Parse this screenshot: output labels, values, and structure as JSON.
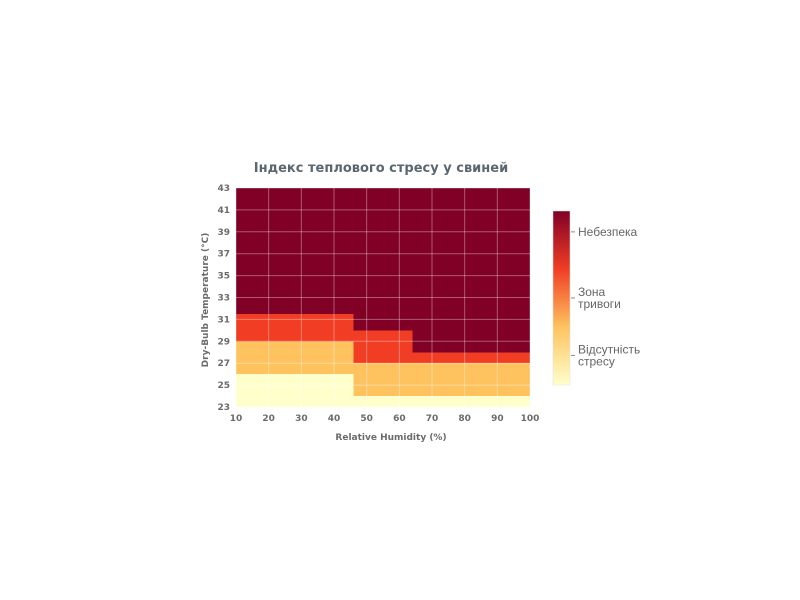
{
  "chart_data": {
    "type": "heatmap",
    "title": "Індекс теплового стресу у свиней",
    "xlabel": "Relative Humidity (%)",
    "ylabel": "Dry-Bulb Temperature (°C)",
    "xlim": [
      10,
      100
    ],
    "ylim": [
      23,
      43
    ],
    "x_ticks": [
      "10",
      "20",
      "30",
      "40",
      "50",
      "60",
      "70",
      "80",
      "90",
      "100"
    ],
    "y_ticks": [
      "23",
      "25",
      "27",
      "29",
      "31",
      "33",
      "35",
      "37",
      "39",
      "41",
      "43"
    ],
    "grid": true,
    "colors": {
      "no_stress": "#ffffcc",
      "mild": "#fec35f",
      "alarm": "#f13d24",
      "danger": "#800026"
    },
    "zones": [
      {
        "level": "no_stress",
        "x": [
          10,
          46
        ],
        "y": [
          23,
          26
        ]
      },
      {
        "level": "no_stress",
        "x": [
          46,
          100
        ],
        "y": [
          23,
          24
        ]
      },
      {
        "level": "mild",
        "x": [
          10,
          46
        ],
        "y": [
          26,
          29
        ]
      },
      {
        "level": "mild",
        "x": [
          46,
          100
        ],
        "y": [
          24,
          27
        ]
      },
      {
        "level": "alarm",
        "x": [
          10,
          46
        ],
        "y": [
          29,
          31.5
        ]
      },
      {
        "level": "alarm",
        "x": [
          46,
          64
        ],
        "y": [
          27,
          30
        ]
      },
      {
        "level": "alarm",
        "x": [
          64,
          100
        ],
        "y": [
          27,
          28
        ]
      },
      {
        "level": "danger",
        "x": [
          10,
          46
        ],
        "y": [
          31.5,
          43
        ]
      },
      {
        "level": "danger",
        "x": [
          46,
          64
        ],
        "y": [
          30,
          43
        ]
      },
      {
        "level": "danger",
        "x": [
          64,
          100
        ],
        "y": [
          28,
          43
        ]
      }
    ],
    "colorbar": {
      "gradient": [
        "#ffffcc",
        "#fec35f",
        "#f13d24",
        "#800026"
      ],
      "labels": [
        {
          "lines": [
            "Небезпека"
          ],
          "position": 0.88
        },
        {
          "lines": [
            "Зона",
            "тривоги"
          ],
          "position": 0.5
        },
        {
          "lines": [
            "Відсутність",
            "стресу"
          ],
          "position": 0.17
        }
      ]
    }
  }
}
